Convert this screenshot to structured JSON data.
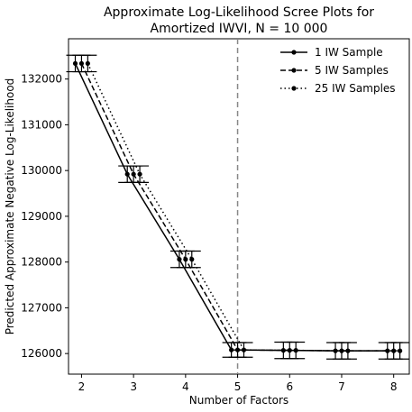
{
  "chart_data": {
    "type": "line",
    "title": "Approximate Log-Likelihood Scree Plots for",
    "subtitle": "Amortized IWVI, N = 10 000",
    "xlabel": "Number of Factors",
    "ylabel": "Predicted Approximate Negative Log-Likelihood",
    "xlim": [
      1.75,
      8.3
    ],
    "ylim": [
      125550,
      132880
    ],
    "xticks": [
      2,
      3,
      4,
      5,
      6,
      7,
      8
    ],
    "yticks": [
      126000,
      127000,
      128000,
      129000,
      130000,
      131000,
      132000
    ],
    "vline_x": 5,
    "grid": false,
    "legend_position": "top-right",
    "series": [
      {
        "name": "1 IW Sample",
        "linestyle": "solid",
        "x": [
          1.88,
          2.88,
          3.88,
          4.88,
          5.88,
          6.88,
          7.88
        ],
        "y": [
          132340,
          129920,
          128060,
          126080,
          126070,
          126060,
          126060
        ],
        "err": [
          180,
          180,
          180,
          160,
          180,
          180,
          180
        ]
      },
      {
        "name": "5 IW Samples",
        "linestyle": "dashed",
        "x": [
          2.0,
          3.0,
          4.0,
          5.0,
          6.0,
          7.0,
          8.0
        ],
        "y": [
          132340,
          129920,
          128060,
          126080,
          126070,
          126060,
          126060
        ],
        "err": [
          180,
          180,
          180,
          160,
          180,
          180,
          180
        ]
      },
      {
        "name": "25 IW Samples",
        "linestyle": "dotted",
        "x": [
          2.12,
          3.12,
          4.12,
          5.12,
          6.12,
          7.12,
          8.12
        ],
        "y": [
          132340,
          129920,
          128060,
          126080,
          126070,
          126060,
          126060
        ],
        "err": [
          180,
          180,
          180,
          160,
          180,
          180,
          180
        ]
      }
    ]
  }
}
